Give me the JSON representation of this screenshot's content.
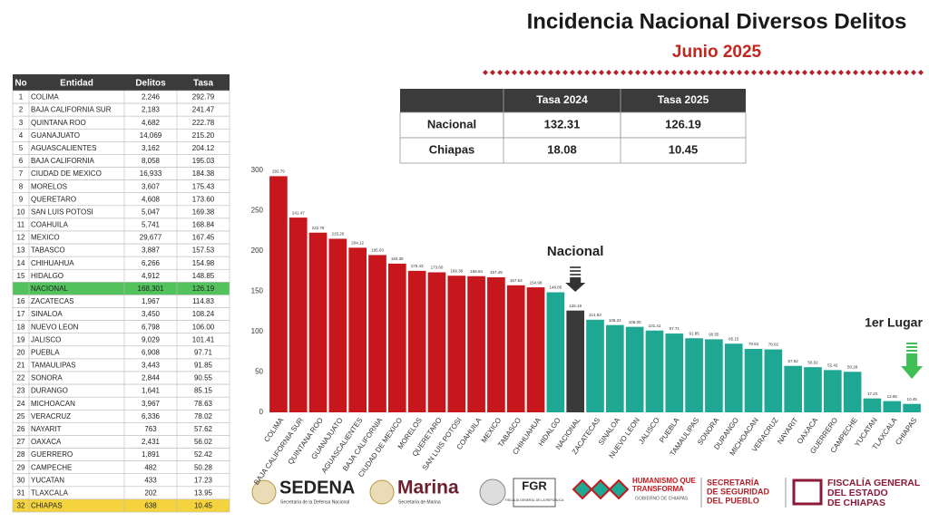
{
  "header": {
    "title": "Incidencia Nacional Diversos Delitos",
    "subtitle": "Junio 2025"
  },
  "table": {
    "columns": [
      "No",
      "Entidad",
      "Delitos",
      "Tasa"
    ],
    "rows": [
      [
        "1",
        "COLIMA",
        "2,246",
        "292.79"
      ],
      [
        "2",
        "BAJA CALIFORNIA SUR",
        "2,183",
        "241.47"
      ],
      [
        "3",
        "QUINTANA ROO",
        "4,682",
        "222.78"
      ],
      [
        "4",
        "GUANAJUATO",
        "14,069",
        "215.20"
      ],
      [
        "5",
        "AGUASCALIENTES",
        "3,162",
        "204.12"
      ],
      [
        "6",
        "BAJA CALIFORNIA",
        "8,058",
        "195.03"
      ],
      [
        "7",
        "CIUDAD DE MEXICO",
        "16,933",
        "184.38"
      ],
      [
        "8",
        "MORELOS",
        "3,607",
        "175.43"
      ],
      [
        "9",
        "QUERETARO",
        "4,608",
        "173.60"
      ],
      [
        "10",
        "SAN LUIS POTOSI",
        "5,047",
        "169.38"
      ],
      [
        "11",
        "COAHUILA",
        "5,741",
        "168.84"
      ],
      [
        "12",
        "MEXICO",
        "29,677",
        "167.45"
      ],
      [
        "13",
        "TABASCO",
        "3,887",
        "157.53"
      ],
      [
        "14",
        "CHIHUAHUA",
        "6,266",
        "154.98"
      ],
      [
        "15",
        "HIDALGO",
        "4,912",
        "148.85"
      ],
      [
        null,
        "NACIONAL",
        "168,301",
        "126.19"
      ],
      [
        "16",
        "ZACATECAS",
        "1,967",
        "114.83"
      ],
      [
        "17",
        "SINALOA",
        "3,450",
        "108.24"
      ],
      [
        "18",
        "NUEVO LEON",
        "6,798",
        "106.00"
      ],
      [
        "19",
        "JALISCO",
        "9,029",
        "101.41"
      ],
      [
        "20",
        "PUEBLA",
        "6,908",
        "97.71"
      ],
      [
        "21",
        "TAMAULIPAS",
        "3,443",
        "91.85"
      ],
      [
        "22",
        "SONORA",
        "2,844",
        "90.55"
      ],
      [
        "23",
        "DURANGO",
        "1,641",
        "85.15"
      ],
      [
        "24",
        "MICHOACAN",
        "3,967",
        "78.63"
      ],
      [
        "25",
        "VERACRUZ",
        "6,336",
        "78.02"
      ],
      [
        "26",
        "NAYARIT",
        "763",
        "57.62"
      ],
      [
        "27",
        "OAXACA",
        "2,431",
        "56.02"
      ],
      [
        "28",
        "GUERRERO",
        "1,891",
        "52.42"
      ],
      [
        "29",
        "CAMPECHE",
        "482",
        "50.28"
      ],
      [
        "30",
        "YUCATAN",
        "433",
        "17.23"
      ],
      [
        "31",
        "TLAXCALA",
        "202",
        "13.95"
      ],
      [
        "32",
        "CHIAPAS",
        "638",
        "10.45"
      ]
    ],
    "row_colors": [
      null,
      null,
      null,
      null,
      null,
      null,
      null,
      null,
      null,
      null,
      null,
      null,
      null,
      null,
      null,
      "#52c25d",
      null,
      null,
      null,
      null,
      null,
      null,
      null,
      null,
      null,
      null,
      null,
      null,
      null,
      null,
      null,
      null,
      "#f5d33f"
    ]
  },
  "summary": {
    "columns": [
      "Tasa 2024",
      "Tasa 2025"
    ],
    "rows": [
      {
        "label": "Nacional",
        "values": [
          132.31,
          126.19
        ]
      },
      {
        "label": "Chiapas",
        "values": [
          18.08,
          10.45
        ]
      }
    ]
  },
  "chart_data": {
    "type": "bar",
    "categories": [
      "COLIMA",
      "BAJA CALIFORNIA SUR",
      "QUINTANA ROO",
      "GUANAJUATO",
      "AGUASCALIENTES",
      "BAJA CALIFORNIA",
      "CIUDAD DE MEXICO",
      "MORELOS",
      "QUERETARO",
      "SAN LUIS POTOSI",
      "COAHUILA",
      "MEXICO",
      "TABASCO",
      "CHIHUAHUA",
      "HIDALGO",
      "NACIONAL",
      "ZACATECAS",
      "SINALOA",
      "NUEVO LEON",
      "JALISCO",
      "PUEBLA",
      "TAMAULIPAS",
      "SONORA",
      "DURANGO",
      "MICHOACAN",
      "VERACRUZ",
      "NAYARIT",
      "OAXACA",
      "GUERRERO",
      "CAMPECHE",
      "YUCATAN",
      "TLAXCALA",
      "CHIAPAS"
    ],
    "values": [
      292.79,
      241.47,
      222.78,
      215.2,
      204.12,
      195.03,
      184.38,
      175.43,
      173.6,
      169.38,
      168.84,
      167.45,
      157.53,
      154.98,
      148.85,
      126.19,
      114.83,
      108.24,
      106,
      101.41,
      97.71,
      91.85,
      90.55,
      85.15,
      78.63,
      78.02,
      57.62,
      56.02,
      52.42,
      50.28,
      17.23,
      13.95,
      10.45
    ],
    "value_labels": [
      "292.79",
      "241.47",
      "222.78",
      "215.20",
      "204.12",
      "195.03",
      "184.38",
      "175.43",
      "173.60",
      "169.38",
      "168.84",
      "167.45",
      "157.53",
      "154.98",
      "148.85",
      "126.19",
      "114.83",
      "108.24",
      "106.00",
      "101.41",
      "97.71",
      "91.85",
      "90.55",
      "85.15",
      "78.63",
      "78.02",
      "57.62",
      "56.02",
      "52.42",
      "50.28",
      "17.23",
      "13.95",
      "10.45"
    ],
    "colors": [
      "#c8161d",
      "#c8161d",
      "#c8161d",
      "#c8161d",
      "#c8161d",
      "#c8161d",
      "#c8161d",
      "#c8161d",
      "#c8161d",
      "#c8161d",
      "#c8161d",
      "#c8161d",
      "#c8161d",
      "#c8161d",
      "#1ea894",
      "#3a3a3a",
      "#1ea894",
      "#1ea894",
      "#1ea894",
      "#1ea894",
      "#1ea894",
      "#1ea894",
      "#1ea894",
      "#1ea894",
      "#1ea894",
      "#1ea894",
      "#1ea894",
      "#1ea894",
      "#1ea894",
      "#1ea894",
      "#1ea894",
      "#1ea894",
      "#1ea894"
    ],
    "ylim": [
      0,
      300
    ],
    "yticks": [
      0,
      50,
      100,
      150,
      200,
      250,
      300
    ],
    "annotations": [
      "Nacional",
      "1er Lugar"
    ]
  },
  "logos": {
    "sedena": "SEDENA",
    "sedena_sub": "Secretaría de la Defensa Nacional",
    "marina": "Marina",
    "marina_sub": "Secretaría de Marina",
    "fgr": "FGR",
    "fgr_sub": "FISCALÍA GENERAL DE LA REPÚBLICA",
    "chiapas": [
      "HUMANISMO QUE",
      "TRANSFORMA"
    ],
    "chiapas_sub": "GOBIERNO DE CHIAPAS",
    "ssp": [
      "SECRETARÍA",
      "DE SEGURIDAD",
      "DEL PUEBLO"
    ],
    "fge": [
      "FISCALÍA GENERAL",
      "DEL ESTADO",
      "DE CHIAPAS"
    ]
  }
}
